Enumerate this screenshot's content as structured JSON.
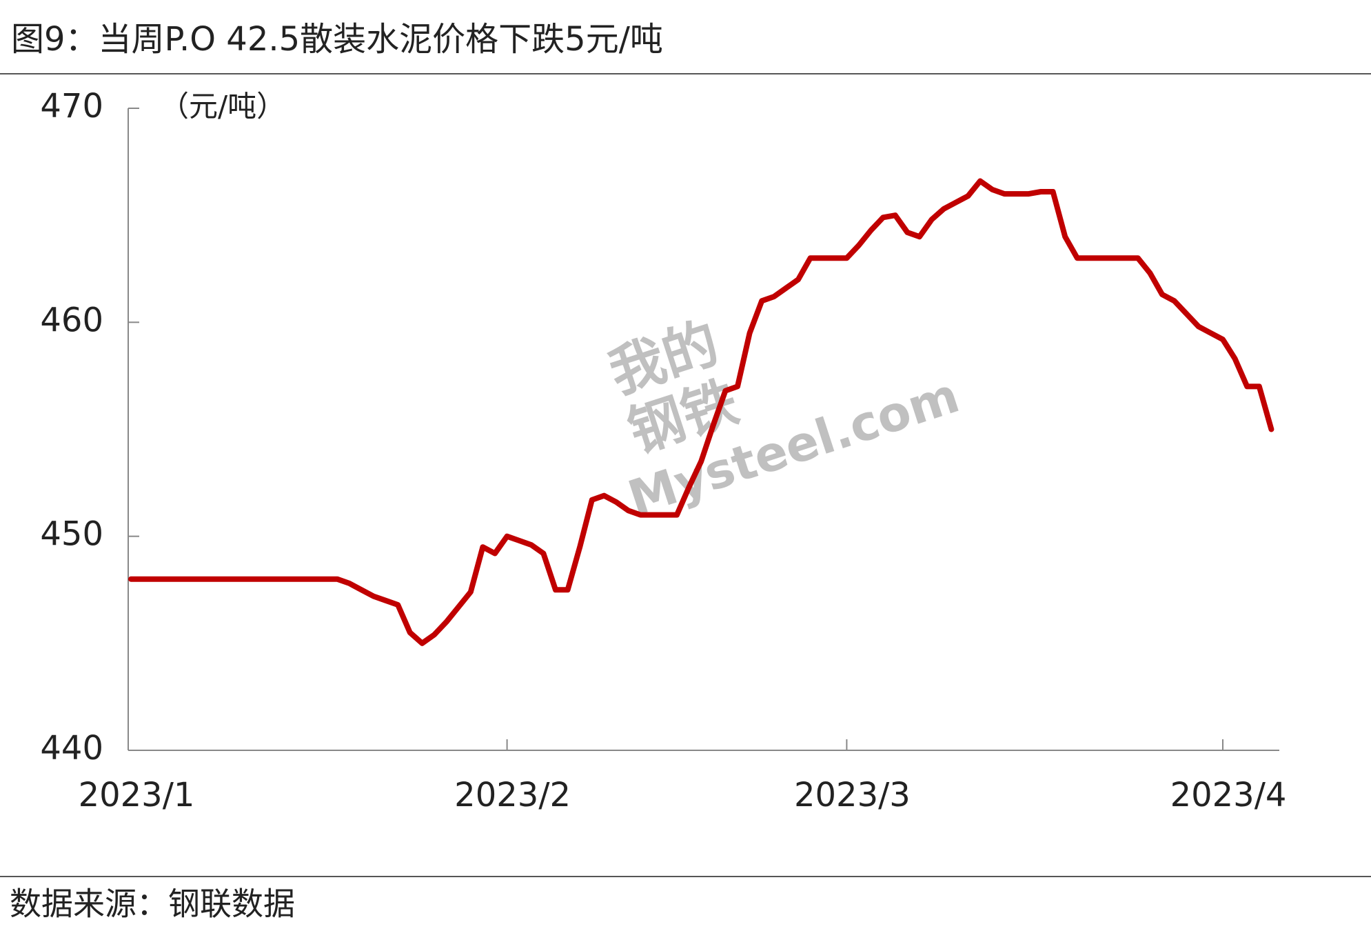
{
  "chart_data": {
    "type": "line",
    "title": "图9：当周P.O 42.5散装水泥价格下跌5元/吨",
    "y_label": "（元/吨）",
    "source": "数据来源：钢联数据",
    "watermark": [
      "我的",
      "钢铁",
      "Mysteel.com"
    ],
    "categories": [
      "2023/1",
      null,
      null,
      null,
      null,
      null,
      null,
      null,
      null,
      null,
      null,
      null,
      null,
      null,
      null,
      null,
      null,
      null,
      null,
      null,
      null,
      null,
      null,
      null,
      null,
      null,
      null,
      null,
      null,
      null,
      null,
      "2023/2",
      null,
      null,
      null,
      null,
      null,
      null,
      null,
      null,
      null,
      null,
      null,
      null,
      null,
      null,
      null,
      null,
      null,
      null,
      null,
      null,
      null,
      null,
      null,
      null,
      null,
      null,
      null,
      "2023/3",
      null,
      null,
      null,
      null,
      null,
      null,
      null,
      null,
      null,
      null,
      null,
      null,
      null,
      null,
      null,
      null,
      null,
      null,
      null,
      null,
      null,
      null,
      null,
      null,
      null,
      null,
      null,
      null,
      null,
      null,
      "2023/4",
      null,
      null,
      null,
      null
    ],
    "series": [
      {
        "name": "P.O 42.5散装水泥价格",
        "color": "#c00000",
        "values": [
          448,
          448,
          448,
          448,
          448,
          448,
          448,
          448,
          448,
          448,
          448,
          448,
          448,
          448,
          448,
          448,
          448,
          448,
          447.8,
          447.5,
          447.2,
          447,
          446.8,
          445.5,
          445,
          445.4,
          446,
          446.7,
          447.4,
          449.5,
          449.2,
          450,
          449.8,
          449.6,
          449.2,
          447.5,
          447.5,
          449.5,
          451.7,
          451.9,
          451.6,
          451.2,
          451,
          451,
          451,
          451,
          452.3,
          453.5,
          455.2,
          456.8,
          457,
          459.5,
          461,
          461.2,
          461.6,
          462,
          463,
          463,
          463,
          463,
          463.6,
          464.3,
          464.9,
          465,
          464.2,
          464,
          464.8,
          465.3,
          465.6,
          465.9,
          466.6,
          466.2,
          466,
          466,
          466,
          466.1,
          466.1,
          464,
          463,
          463,
          463,
          463,
          463,
          463,
          462.3,
          461.3,
          461,
          460.4,
          459.8,
          459.5,
          459.2,
          458.3,
          457,
          457,
          455
        ]
      }
    ],
    "ylim": [
      440,
      470
    ],
    "yticks": [
      440,
      450,
      460,
      470
    ],
    "grid": false
  }
}
